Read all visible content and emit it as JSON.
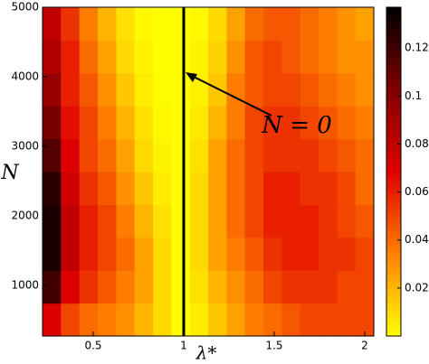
{
  "chart_data": {
    "type": "heatmap",
    "x_label": "λ*",
    "y_label": "N",
    "annotation": "N = 0",
    "xlim": [
      0.22,
      2.05
    ],
    "ylim": [
      270,
      5000
    ],
    "xticks": [
      0.5,
      1,
      1.5,
      2
    ],
    "yticks": [
      1000,
      2000,
      3000,
      4000,
      5000
    ],
    "vline": 1,
    "x": [
      0.271,
      0.372,
      0.474,
      0.576,
      0.678,
      0.779,
      0.881,
      0.983,
      1.084,
      1.186,
      1.288,
      1.389,
      1.491,
      1.593,
      1.694,
      1.796,
      1.898,
      1.999
    ],
    "y": [
      507,
      980,
      1453,
      1926,
      2399,
      2872,
      3345,
      3818,
      4291,
      4764
    ],
    "z": [
      [
        0.07,
        0.05,
        0.04,
        0.035,
        0.03,
        0.02,
        0.01,
        0.0,
        0.005,
        0.015,
        0.025,
        0.035,
        0.04,
        0.045,
        0.05,
        0.05,
        0.05,
        0.05
      ],
      [
        0.12,
        0.07,
        0.055,
        0.045,
        0.035,
        0.025,
        0.01,
        0.0,
        0.008,
        0.02,
        0.03,
        0.04,
        0.05,
        0.055,
        0.055,
        0.055,
        0.05,
        0.05
      ],
      [
        0.13,
        0.08,
        0.06,
        0.05,
        0.04,
        0.025,
        0.01,
        0.0,
        0.01,
        0.025,
        0.035,
        0.045,
        0.055,
        0.06,
        0.06,
        0.055,
        0.055,
        0.05
      ],
      [
        0.13,
        0.08,
        0.06,
        0.05,
        0.035,
        0.02,
        0.008,
        0.0,
        0.01,
        0.025,
        0.04,
        0.05,
        0.06,
        0.06,
        0.06,
        0.055,
        0.05,
        0.045
      ],
      [
        0.125,
        0.075,
        0.055,
        0.045,
        0.03,
        0.015,
        0.005,
        0.0,
        0.01,
        0.025,
        0.04,
        0.05,
        0.06,
        0.06,
        0.055,
        0.055,
        0.05,
        0.04
      ],
      [
        0.115,
        0.07,
        0.05,
        0.04,
        0.025,
        0.01,
        0.003,
        0.0,
        0.008,
        0.025,
        0.04,
        0.05,
        0.055,
        0.055,
        0.055,
        0.05,
        0.045,
        0.04
      ],
      [
        0.105,
        0.065,
        0.05,
        0.035,
        0.02,
        0.008,
        0.002,
        0.0,
        0.006,
        0.02,
        0.035,
        0.05,
        0.055,
        0.055,
        0.05,
        0.045,
        0.04,
        0.035
      ],
      [
        0.095,
        0.06,
        0.045,
        0.03,
        0.015,
        0.005,
        0.001,
        0.0,
        0.004,
        0.015,
        0.035,
        0.045,
        0.05,
        0.05,
        0.045,
        0.04,
        0.035,
        0.03
      ],
      [
        0.085,
        0.06,
        0.04,
        0.025,
        0.01,
        0.003,
        0.0,
        0.0,
        0.003,
        0.012,
        0.03,
        0.045,
        0.05,
        0.045,
        0.04,
        0.035,
        0.03,
        0.03
      ],
      [
        0.08,
        0.055,
        0.035,
        0.02,
        0.008,
        0.002,
        0.0,
        0.0,
        0.002,
        0.01,
        0.025,
        0.04,
        0.045,
        0.045,
        0.04,
        0.035,
        0.03,
        0.025
      ]
    ],
    "clim": [
      0,
      0.137
    ],
    "cticks": [
      0.02,
      0.04,
      0.06,
      0.08,
      0.1,
      0.12
    ],
    "colormap": [
      "#ffff00",
      "#ff8000",
      "#e00000",
      "#800000",
      "#000000"
    ]
  }
}
